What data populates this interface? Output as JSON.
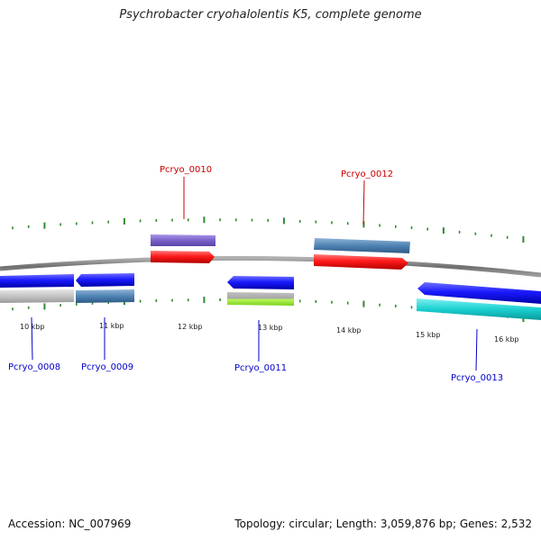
{
  "title": "Psychrobacter cryohalolentis K5, complete genome",
  "footer": {
    "accession": "Accession: NC_007969",
    "summary": "Topology: circular; Length: 3,059,876 bp; Genes: 2,532"
  },
  "colors": {
    "backbone": "#7a7a7a",
    "tick": "#2e8b2e",
    "label_forward": "#cc0000",
    "label_reverse": "#0000cc",
    "cds_forward": "#ff1a1a",
    "cds_reverse": "#1a1aff",
    "gene_steelblue": "#4f83b3",
    "gene_purple": "#7a62c9",
    "gene_grey": "#c4c4c4",
    "gene_lime": "#9bef2c",
    "gene_cyan": "#1ad0d0"
  },
  "ruler": {
    "labels": [
      "10 kbp",
      "11 kbp",
      "12 kbp",
      "13 kbp",
      "14 kbp",
      "15 kbp",
      "16 kbp"
    ]
  },
  "genes": [
    {
      "name": "Pcryo_0008",
      "strand": "reverse"
    },
    {
      "name": "Pcryo_0009",
      "strand": "reverse"
    },
    {
      "name": "Pcryo_0010",
      "strand": "forward"
    },
    {
      "name": "Pcryo_0011",
      "strand": "reverse"
    },
    {
      "name": "Pcryo_0012",
      "strand": "forward"
    },
    {
      "name": "Pcryo_0013",
      "strand": "reverse"
    }
  ]
}
